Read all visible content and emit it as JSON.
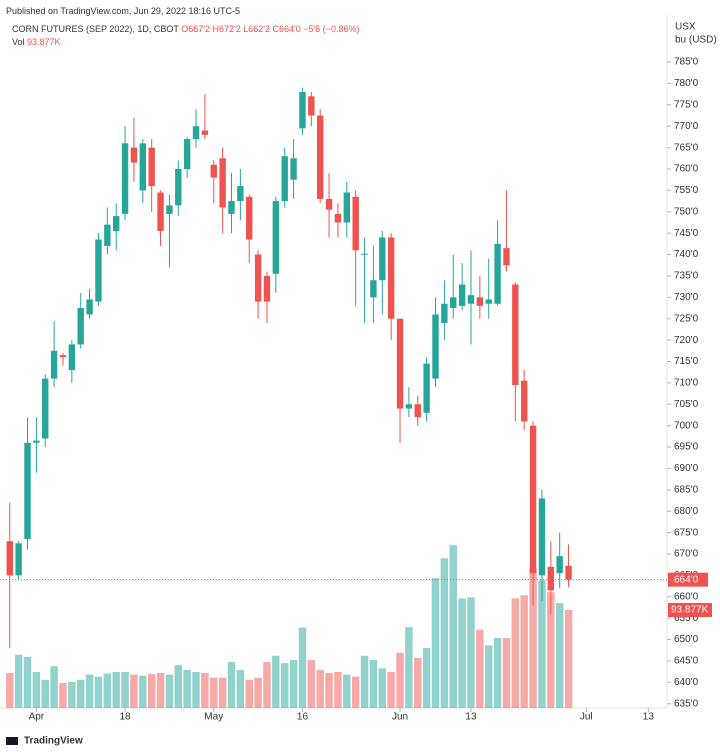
{
  "top_note": "Published on TradingView.com, Jun 29, 2022 18:16 UTC-5",
  "header": {
    "symbol": "CORN FUTURES (SEP 2022), 1D, CBOT",
    "ohlc": "O667'2 H672'2 L662'2 C664'0 −5'6 (−0.86%)",
    "vol_name": "Vol"
  },
  "axis_unit": [
    "USX",
    "bu (USD)"
  ],
  "footer": "TradingView",
  "chart_data": {
    "type": "candlestick",
    "up_color": "#26a69a",
    "down_color": "#ef5350",
    "xlim": [
      -1.1,
      74.1
    ],
    "xticks": [
      {
        "value": 3,
        "label": "Apr"
      },
      {
        "value": 13,
        "label": "18"
      },
      {
        "value": 23,
        "label": "May"
      },
      {
        "value": 33,
        "label": "16"
      },
      {
        "value": 44,
        "label": "Jun"
      },
      {
        "value": 52,
        "label": "13"
      },
      {
        "value": 65,
        "label": "Jul"
      },
      {
        "value": 72,
        "label": "13"
      }
    ],
    "ylim": [
      634,
      796
    ],
    "yticks": [
      {
        "value": 635,
        "label": "635'0"
      },
      {
        "value": 640,
        "label": "640'0"
      },
      {
        "value": 645,
        "label": "645'0"
      },
      {
        "value": 650,
        "label": "650'0"
      },
      {
        "value": 655,
        "label": "655'0"
      },
      {
        "value": 660,
        "label": "660'0"
      },
      {
        "value": 665,
        "label": "665'0"
      },
      {
        "value": 670,
        "label": "670'0"
      },
      {
        "value": 675,
        "label": "675'0"
      },
      {
        "value": 680,
        "label": "680'0"
      },
      {
        "value": 685,
        "label": "685'0"
      },
      {
        "value": 690,
        "label": "690'0"
      },
      {
        "value": 695,
        "label": "695'0"
      },
      {
        "value": 700,
        "label": "700'0"
      },
      {
        "value": 705,
        "label": "705'0"
      },
      {
        "value": 710,
        "label": "710'0"
      },
      {
        "value": 715,
        "label": "715'0"
      },
      {
        "value": 720,
        "label": "720'0"
      },
      {
        "value": 725,
        "label": "725'0"
      },
      {
        "value": 730,
        "label": "730'0"
      },
      {
        "value": 735,
        "label": "735'0"
      },
      {
        "value": 740,
        "label": "740'0"
      },
      {
        "value": 745,
        "label": "745'0"
      },
      {
        "value": 750,
        "label": "750'0"
      },
      {
        "value": 755,
        "label": "755'0"
      },
      {
        "value": 760,
        "label": "760'0"
      },
      {
        "value": 765,
        "label": "765'0"
      },
      {
        "value": 770,
        "label": "770'0"
      },
      {
        "value": 775,
        "label": "775'0"
      },
      {
        "value": 780,
        "label": "780'0"
      },
      {
        "value": 785,
        "label": "785'0"
      }
    ],
    "open": [
      673,
      665,
      673.5,
      696,
      697,
      711,
      716.5,
      713,
      719,
      726,
      729,
      742,
      745.5,
      749.5,
      765,
      755,
      765,
      754.5,
      749.5,
      751.5,
      760,
      767,
      769,
      761,
      762.5,
      749.5,
      752.5,
      753.5,
      740,
      735,
      735.5,
      752.5,
      757.5,
      769.5,
      777,
      772.5,
      753,
      749.5,
      747.5,
      753.5,
      740,
      730,
      734,
      744,
      725,
      704,
      705,
      703,
      711,
      724,
      727.5,
      728,
      728.5,
      730,
      728.5,
      728.5,
      741.5,
      733,
      710.5,
      700,
      665,
      667,
      665.5,
      667.25
    ],
    "high": [
      682,
      673,
      702,
      702,
      712,
      724.5,
      717,
      720,
      731,
      732,
      745,
      751,
      752,
      770,
      772,
      767,
      767,
      755,
      754,
      762,
      767.5,
      774,
      777.5,
      762,
      765,
      759,
      760,
      754,
      741,
      736,
      753.5,
      765,
      767,
      779,
      778,
      774,
      759,
      752,
      757,
      755,
      744,
      742,
      745.5,
      745,
      725,
      709,
      707,
      716,
      730,
      734,
      740,
      738,
      741,
      735,
      739,
      748,
      755,
      733.5,
      713,
      701,
      685,
      673,
      675,
      672.25
    ],
    "low": [
      648,
      664,
      671,
      689,
      695,
      709,
      714,
      710,
      718,
      725,
      728,
      740,
      741,
      748,
      757,
      752,
      750,
      742,
      737,
      749,
      758,
      765,
      767,
      752,
      745,
      745,
      748,
      738,
      725,
      724,
      731,
      751,
      753,
      768,
      770,
      752,
      744,
      744,
      744,
      728,
      724,
      724,
      726,
      720,
      696,
      702,
      700,
      701,
      709,
      720,
      725,
      727,
      719,
      725,
      725,
      728,
      736,
      701,
      699,
      658,
      659,
      656,
      662,
      662.25
    ],
    "close": [
      665,
      672.5,
      696,
      696.5,
      711,
      717.5,
      716,
      719,
      727.5,
      729.5,
      743.5,
      747,
      749,
      766,
      761.5,
      766,
      756,
      745.5,
      751.5,
      760,
      767,
      770,
      768,
      758,
      751,
      752.5,
      756,
      743.5,
      729,
      729,
      752.5,
      763,
      762.5,
      778,
      772.5,
      753,
      750.5,
      747.5,
      754.5,
      741,
      740.2,
      734,
      744,
      725,
      704,
      705,
      702,
      714.5,
      726,
      728.5,
      730,
      733,
      730.5,
      728,
      729.5,
      742.5,
      737.5,
      709.5,
      701,
      665.5,
      683,
      661.5,
      669.5,
      664
    ],
    "last_close_label": "664'0",
    "volume": {
      "values": [
        33.5,
        51,
        49,
        34.5,
        27,
        40,
        24,
        25,
        27,
        32,
        30,
        33,
        34.5,
        34.5,
        32,
        31,
        32.5,
        33.5,
        32,
        41,
        36.5,
        34.5,
        33.5,
        29,
        29,
        44,
        36.5,
        27,
        29,
        44,
        50,
        43,
        46,
        77,
        46,
        36.5,
        33.5,
        34.5,
        32,
        30,
        50,
        46,
        38,
        34.5,
        53,
        77.5,
        48,
        57.5,
        124.5,
        143.5,
        156,
        105,
        106,
        75,
        60,
        67,
        67,
        105,
        108,
        134,
        122.5,
        111,
        100.5,
        93.877
      ],
      "ylim": [
        0,
        664
      ],
      "last_label": "93.877K"
    }
  }
}
